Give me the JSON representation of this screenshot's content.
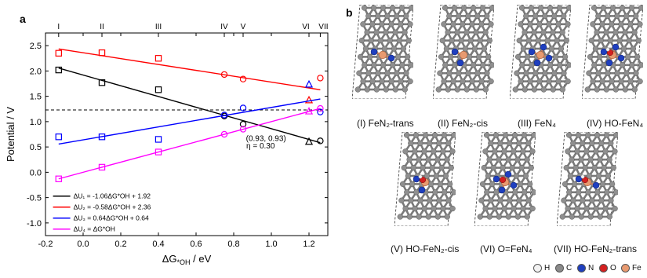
{
  "panel_a_label": "a",
  "panel_b_label": "b",
  "chart_data": {
    "type": "scatter",
    "xlabel": "ΔG",
    "xlabel_sub": "*OH",
    "xlabel_unit": " / eV",
    "ylabel": "Potential / V",
    "xlim": [
      -0.2,
      1.3
    ],
    "ylim": [
      -1.25,
      2.75
    ],
    "xticks": [
      -0.2,
      0.0,
      0.2,
      0.4,
      0.6,
      0.8,
      1.0,
      1.2
    ],
    "xtick_labels": [
      "-0.2",
      "0.0",
      "0.2",
      "0.4",
      "0.6",
      "0.8",
      "1.0",
      "1.2"
    ],
    "yticks": [
      -1.0,
      -0.5,
      0.0,
      0.5,
      1.0,
      1.5,
      2.0,
      2.5
    ],
    "ytick_labels": [
      "-1.0",
      "-0.5",
      "0.0",
      "0.5",
      "1.0",
      "1.5",
      "2.0",
      "2.5"
    ],
    "top_axis": {
      "labels": [
        "I",
        "II",
        "III",
        "IV",
        "V",
        "VI",
        "VII"
      ],
      "x": [
        -0.13,
        0.1,
        0.4,
        0.75,
        0.85,
        1.2,
        1.26
      ]
    },
    "reference_line": {
      "y": 1.23,
      "style": "dashed"
    },
    "series": [
      {
        "legend": "ΔU₁ = -1.06ΔG*OH + 1.92",
        "color": "#000000",
        "slope": -1.06,
        "intercept": 1.92,
        "points": [
          {
            "x": -0.13,
            "y": 2.02,
            "marker": "square"
          },
          {
            "x": 0.1,
            "y": 1.77,
            "marker": "square"
          },
          {
            "x": 0.4,
            "y": 1.63,
            "marker": "square"
          },
          {
            "x": 0.75,
            "y": 1.11,
            "marker": "circle"
          },
          {
            "x": 0.85,
            "y": 0.95,
            "marker": "circle"
          },
          {
            "x": 1.2,
            "y": 0.6,
            "marker": "triangle"
          },
          {
            "x": 1.26,
            "y": 0.62,
            "marker": "circle"
          }
        ]
      },
      {
        "legend": "ΔU₂ = -0.58ΔG*OH + 2.36",
        "color": "#ff0000",
        "slope": -0.58,
        "intercept": 2.36,
        "points": [
          {
            "x": -0.13,
            "y": 2.35,
            "marker": "square"
          },
          {
            "x": 0.1,
            "y": 2.36,
            "marker": "square"
          },
          {
            "x": 0.4,
            "y": 2.25,
            "marker": "square"
          },
          {
            "x": 0.75,
            "y": 1.93,
            "marker": "circle"
          },
          {
            "x": 0.85,
            "y": 1.84,
            "marker": "circle"
          },
          {
            "x": 1.2,
            "y": 1.42,
            "marker": "triangle"
          },
          {
            "x": 1.26,
            "y": 1.86,
            "marker": "circle"
          }
        ]
      },
      {
        "legend": "ΔU₃ = 0.64ΔG*OH + 0.64",
        "color": "#0000ff",
        "slope": 0.64,
        "intercept": 0.64,
        "points": [
          {
            "x": -0.13,
            "y": 0.7,
            "marker": "square"
          },
          {
            "x": 0.1,
            "y": 0.7,
            "marker": "square"
          },
          {
            "x": 0.4,
            "y": 0.65,
            "marker": "square"
          },
          {
            "x": 0.75,
            "y": 1.13,
            "marker": "circle"
          },
          {
            "x": 0.85,
            "y": 1.27,
            "marker": "circle"
          },
          {
            "x": 1.2,
            "y": 1.73,
            "marker": "triangle"
          },
          {
            "x": 1.26,
            "y": 1.19,
            "marker": "circle"
          }
        ]
      },
      {
        "legend": "ΔU₄ = ΔG*OH",
        "color": "#ff00ff",
        "slope": 1.0,
        "intercept": 0.0,
        "points": [
          {
            "x": -0.13,
            "y": -0.13,
            "marker": "square"
          },
          {
            "x": 0.1,
            "y": 0.1,
            "marker": "square"
          },
          {
            "x": 0.4,
            "y": 0.4,
            "marker": "square"
          },
          {
            "x": 0.75,
            "y": 0.75,
            "marker": "circle"
          },
          {
            "x": 0.85,
            "y": 0.85,
            "marker": "circle"
          },
          {
            "x": 1.2,
            "y": 1.2,
            "marker": "triangle"
          },
          {
            "x": 1.26,
            "y": 1.26,
            "marker": "circle"
          }
        ]
      }
    ],
    "annotations": {
      "point_label": "(0.93, 0.93)",
      "eta_label": "η = 0.30"
    }
  },
  "structures": [
    {
      "label": "(I) FeN₂-trans"
    },
    {
      "label": "(II) FeN₂-cis"
    },
    {
      "label": "(III) FeN₄"
    },
    {
      "label": "(IV) HO-FeN₄"
    },
    {
      "label": "(V) HO-FeN₂-cis"
    },
    {
      "label": "(VI) O=FeN₄"
    },
    {
      "label": "(VII) HO-FeN₂-trans"
    }
  ],
  "atom_legend": [
    {
      "symbol": "H",
      "color": "#f2f2f2"
    },
    {
      "symbol": "C",
      "color": "#8a8a8a"
    },
    {
      "symbol": "N",
      "color": "#1f3fbf"
    },
    {
      "symbol": "O",
      "color": "#d42020"
    },
    {
      "symbol": "Fe",
      "color": "#e89a70"
    }
  ]
}
